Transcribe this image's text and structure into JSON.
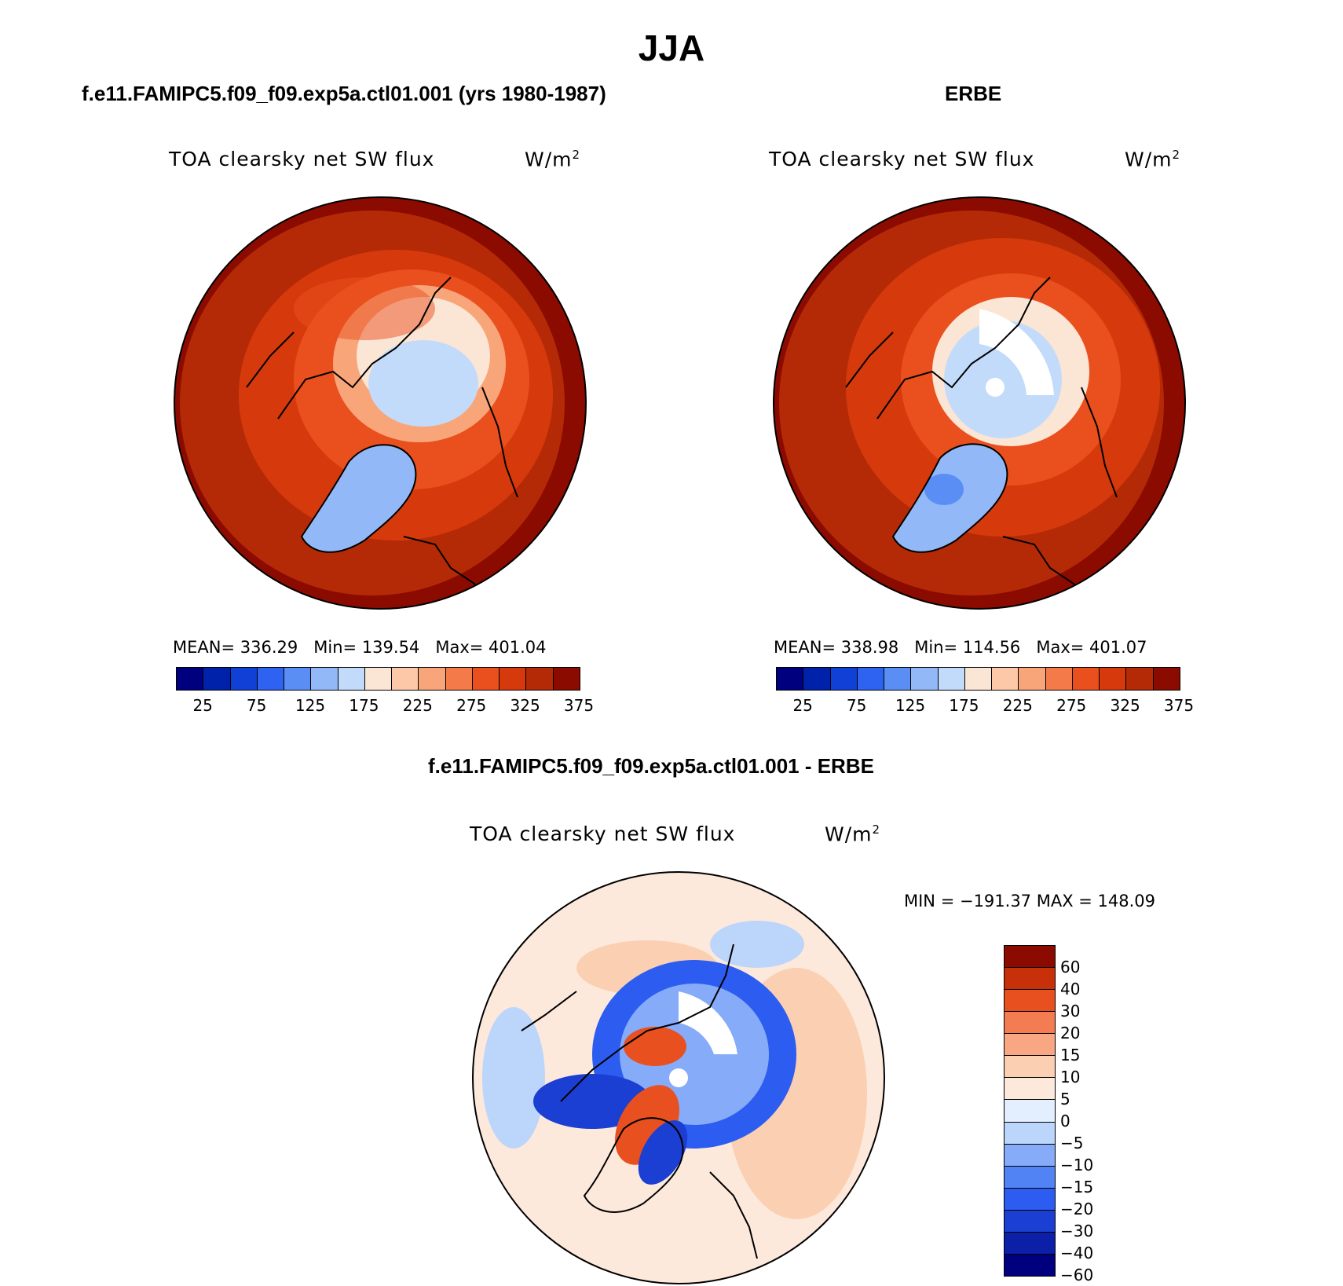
{
  "title": "JJA",
  "panels": [
    {
      "case": "f.e11.FAMIPC5.f09_f09.exp5a.ctl01.001 (yrs 1980-1987)",
      "variable": "TOA clearsky net SW flux",
      "units": "W/m",
      "units_sup": "2",
      "stats": {
        "mean_label": "MEAN=",
        "mean": "336.29",
        "min_label": "Min=",
        "min": "139.54",
        "max_label": "Max=",
        "max": "401.04"
      }
    },
    {
      "case": "ERBE",
      "variable": "TOA clearsky net SW flux",
      "units": "W/m",
      "units_sup": "2",
      "stats": {
        "mean_label": "MEAN=",
        "mean": "338.98",
        "min_label": "Min=",
        "min": "114.56",
        "max_label": "Max=",
        "max": "401.07"
      }
    }
  ],
  "diff_panel": {
    "case": "f.e11.FAMIPC5.f09_f09.exp5a.ctl01.001 - ERBE",
    "variable": "TOA clearsky net SW flux",
    "units": "W/m",
    "units_sup": "2",
    "minmax_text": "MIN = −191.37 MAX = 148.09"
  },
  "colorbar_top": {
    "colors": [
      "#00007f",
      "#0022aa",
      "#1140d6",
      "#2e62f0",
      "#5b8ef5",
      "#93b8f8",
      "#c3dbfa",
      "#fbe5d4",
      "#fcc8a8",
      "#f9a57a",
      "#f47a4a",
      "#ea4f1e",
      "#d63a0c",
      "#b52a06",
      "#8b0b00"
    ],
    "tick_labels": [
      "25",
      "75",
      "125",
      "175",
      "225",
      "275",
      "325",
      "375"
    ]
  },
  "colorbar_diff": {
    "colors": [
      "#00007f",
      "#0c1fa8",
      "#1b3fd2",
      "#2d5df0",
      "#5283f5",
      "#86abf8",
      "#bcd5fa",
      "#e3efff",
      "#fde9dc",
      "#fbcfb2",
      "#f9a682",
      "#f47c52",
      "#e8501f",
      "#c8300a",
      "#8b0b00"
    ],
    "tick_labels": [
      "60",
      "40",
      "30",
      "20",
      "15",
      "10",
      "5",
      "0",
      "−5",
      "−10",
      "−15",
      "−20",
      "−30",
      "−40",
      "−60"
    ]
  }
}
